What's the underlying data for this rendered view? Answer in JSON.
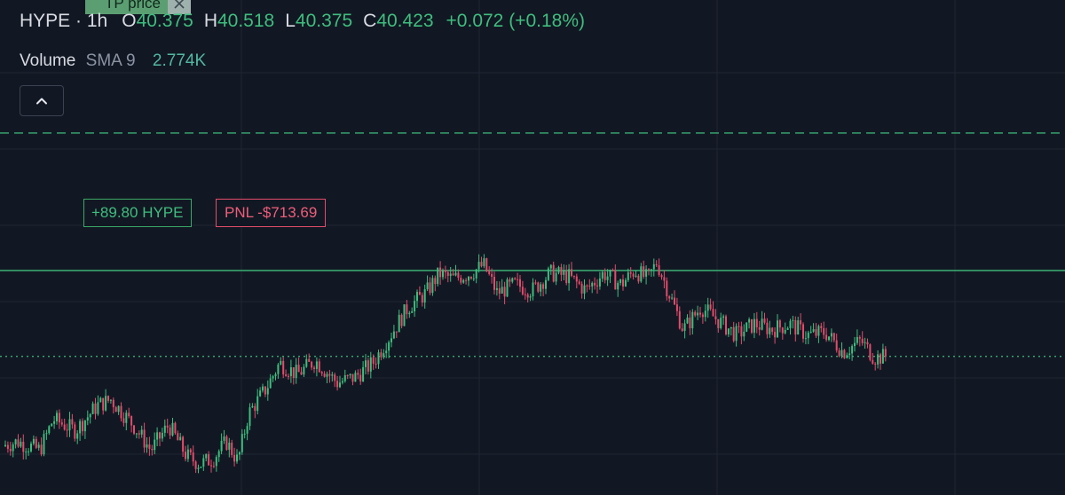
{
  "header": {
    "symbol": "HYPE",
    "interval_sep": "·",
    "interval": "1h",
    "open_label": "O",
    "open": "40.375",
    "high_label": "H",
    "high": "40.518",
    "low_label": "L",
    "low": "40.375",
    "close_label": "C",
    "close": "40.423",
    "change": "+0.072 (+0.18%)"
  },
  "volume": {
    "label": "Volume",
    "indicator": "SMA 9",
    "value": "2.774K"
  },
  "tp_tag": {
    "label": "TP price",
    "close_icon": "close-icon"
  },
  "position": {
    "size_label": "+89.80 HYPE",
    "pnl_label": "PNL -$713.69"
  },
  "colors": {
    "background": "#121823",
    "up": "#3fbd7e",
    "down": "#e24c6b",
    "grid": "#1f2633",
    "entry_line": "#3fbd7e",
    "tp_line": "#3fbd7e"
  },
  "icons": {
    "collapse": "chevron-up-icon"
  },
  "chart_data": {
    "type": "candlestick",
    "interval": "1h",
    "symbol": "HYPE",
    "grid": true,
    "levels": {
      "entry_price": 41.95,
      "tp_price": 44.4,
      "last_price": 40.42
    },
    "keypoints": [
      [
        0,
        38.82
      ],
      [
        20,
        38.9
      ],
      [
        45,
        38.75
      ],
      [
        60,
        39.3
      ],
      [
        85,
        39.1
      ],
      [
        110,
        39.55
      ],
      [
        125,
        39.65
      ],
      [
        150,
        39.2
      ],
      [
        170,
        38.75
      ],
      [
        190,
        39.2
      ],
      [
        210,
        38.65
      ],
      [
        225,
        38.5
      ],
      [
        240,
        38.6
      ],
      [
        255,
        38.9
      ],
      [
        268,
        38.55
      ],
      [
        280,
        39.4
      ],
      [
        300,
        39.85
      ],
      [
        315,
        40.3
      ],
      [
        335,
        40.1
      ],
      [
        355,
        40.35
      ],
      [
        380,
        39.95
      ],
      [
        400,
        40.05
      ],
      [
        420,
        40.3
      ],
      [
        440,
        40.8
      ],
      [
        460,
        41.3
      ],
      [
        480,
        41.55
      ],
      [
        495,
        41.9
      ],
      [
        510,
        41.8
      ],
      [
        530,
        41.9
      ],
      [
        545,
        42.05
      ],
      [
        560,
        41.55
      ],
      [
        580,
        41.7
      ],
      [
        600,
        41.6
      ],
      [
        620,
        41.9
      ],
      [
        640,
        41.85
      ],
      [
        660,
        41.6
      ],
      [
        680,
        41.9
      ],
      [
        700,
        41.7
      ],
      [
        715,
        41.95
      ],
      [
        730,
        41.8
      ],
      [
        740,
        42.1
      ],
      [
        755,
        41.5
      ],
      [
        770,
        40.9
      ],
      [
        790,
        41.3
      ],
      [
        810,
        41.05
      ],
      [
        830,
        40.8
      ],
      [
        850,
        41.0
      ],
      [
        870,
        40.9
      ],
      [
        890,
        41.0
      ],
      [
        910,
        40.8
      ],
      [
        930,
        40.85
      ],
      [
        950,
        40.5
      ],
      [
        970,
        40.7
      ],
      [
        985,
        40.4
      ],
      [
        1000,
        40.42
      ]
    ],
    "candle_spacing": 2.9,
    "candle_count": 344
  }
}
